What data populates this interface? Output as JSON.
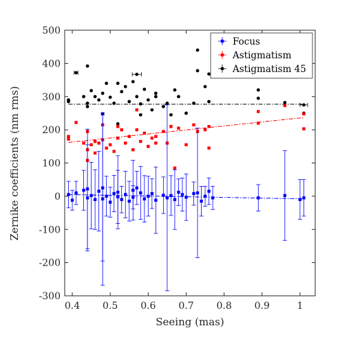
{
  "chart_data": {
    "type": "scatter",
    "xlabel": "Seeing (mas)",
    "ylabel": "Zernike coefficients (nm rms)",
    "xlim": [
      0.38,
      1.04
    ],
    "ylim": [
      -300,
      500
    ],
    "xticks": [
      "0.4",
      "0.5",
      "0.6",
      "0.7",
      "0.8",
      "0.9",
      "1"
    ],
    "yticks": [
      "-300",
      "-200",
      "-100",
      "0",
      "100",
      "200",
      "300",
      "400",
      "500"
    ],
    "legend_position": "top-right",
    "grid": false,
    "series": [
      {
        "name": "Focus",
        "color": "#0000ff",
        "marker": "square",
        "fit": {
          "x": [
            0.39,
            1.01
          ],
          "y": [
            5,
            -8
          ]
        },
        "points": [
          {
            "x": 0.39,
            "y": 5,
            "err": 40
          },
          {
            "x": 0.4,
            "y": -12,
            "err": 30
          },
          {
            "x": 0.41,
            "y": 10,
            "err": 35
          },
          {
            "x": 0.43,
            "y": 18,
            "err": 60
          },
          {
            "x": 0.44,
            "y": 22,
            "err": 180
          },
          {
            "x": 0.44,
            "y": -5,
            "err": 160
          },
          {
            "x": 0.45,
            "y": 2,
            "err": 100
          },
          {
            "x": 0.46,
            "y": -10,
            "err": 90
          },
          {
            "x": 0.47,
            "y": 15,
            "err": 120
          },
          {
            "x": 0.48,
            "y": -8,
            "err": 260
          },
          {
            "x": 0.48,
            "y": 25,
            "err": 220
          },
          {
            "x": 0.49,
            "y": 0,
            "err": 60
          },
          {
            "x": 0.5,
            "y": -18,
            "err": 45
          },
          {
            "x": 0.51,
            "y": 8,
            "err": 55
          },
          {
            "x": 0.52,
            "y": -2,
            "err": 80
          },
          {
            "x": 0.52,
            "y": 12,
            "err": 110
          },
          {
            "x": 0.53,
            "y": -10,
            "err": 40
          },
          {
            "x": 0.54,
            "y": 5,
            "err": 70
          },
          {
            "x": 0.55,
            "y": -15,
            "err": 60
          },
          {
            "x": 0.56,
            "y": 18,
            "err": 90
          },
          {
            "x": 0.56,
            "y": -3,
            "err": 35
          },
          {
            "x": 0.57,
            "y": 25,
            "err": 50
          },
          {
            "x": 0.58,
            "y": 10,
            "err": 80
          },
          {
            "x": 0.59,
            "y": -8,
            "err": 70
          },
          {
            "x": 0.6,
            "y": 0,
            "err": 60
          },
          {
            "x": 0.61,
            "y": 8,
            "err": 45
          },
          {
            "x": 0.62,
            "y": -12,
            "err": 100
          },
          {
            "x": 0.64,
            "y": 3,
            "err": 55
          },
          {
            "x": 0.65,
            "y": -5,
            "err": 280
          },
          {
            "x": 0.66,
            "y": 2,
            "err": 60
          },
          {
            "x": 0.67,
            "y": -10,
            "err": 90
          },
          {
            "x": 0.68,
            "y": 12,
            "err": 40
          },
          {
            "x": 0.69,
            "y": 5,
            "err": 50
          },
          {
            "x": 0.7,
            "y": -3,
            "err": 70
          },
          {
            "x": 0.72,
            "y": 8,
            "err": 35
          },
          {
            "x": 0.73,
            "y": 10,
            "err": 195
          },
          {
            "x": 0.74,
            "y": -15,
            "err": 45
          },
          {
            "x": 0.75,
            "y": 0,
            "err": 30
          },
          {
            "x": 0.76,
            "y": 15,
            "err": 40
          },
          {
            "x": 0.77,
            "y": -5,
            "err": 35
          },
          {
            "x": 0.89,
            "y": -5,
            "err": 40
          },
          {
            "x": 0.96,
            "y": 2,
            "err": 135
          },
          {
            "x": 1.0,
            "y": -10,
            "err": 60
          },
          {
            "x": 1.01,
            "y": -5,
            "err": 55
          }
        ]
      },
      {
        "name": "Astigmatism",
        "color": "#ff0000",
        "marker": "square",
        "fit": {
          "x": [
            0.39,
            1.01
          ],
          "y": [
            162,
            237
          ]
        },
        "points": [
          {
            "x": 0.39,
            "y": 172
          },
          {
            "x": 0.39,
            "y": 180
          },
          {
            "x": 0.41,
            "y": 222
          },
          {
            "x": 0.43,
            "y": 160
          },
          {
            "x": 0.44,
            "y": 108
          },
          {
            "x": 0.44,
            "y": 140
          },
          {
            "x": 0.44,
            "y": 195
          },
          {
            "x": 0.45,
            "y": 155
          },
          {
            "x": 0.46,
            "y": 165
          },
          {
            "x": 0.46,
            "y": 130
          },
          {
            "x": 0.47,
            "y": 160
          },
          {
            "x": 0.48,
            "y": 215
          },
          {
            "x": 0.48,
            "y": 170
          },
          {
            "x": 0.49,
            "y": 145
          },
          {
            "x": 0.5,
            "y": 155
          },
          {
            "x": 0.51,
            "y": 135
          },
          {
            "x": 0.52,
            "y": 175
          },
          {
            "x": 0.52,
            "y": 210
          },
          {
            "x": 0.53,
            "y": 200
          },
          {
            "x": 0.54,
            "y": 160
          },
          {
            "x": 0.55,
            "y": 180
          },
          {
            "x": 0.56,
            "y": 140
          },
          {
            "x": 0.57,
            "y": 200
          },
          {
            "x": 0.57,
            "y": 260
          },
          {
            "x": 0.58,
            "y": 165
          },
          {
            "x": 0.59,
            "y": 190
          },
          {
            "x": 0.6,
            "y": 150
          },
          {
            "x": 0.61,
            "y": 175
          },
          {
            "x": 0.62,
            "y": 180
          },
          {
            "x": 0.62,
            "y": 160
          },
          {
            "x": 0.64,
            "y": 195
          },
          {
            "x": 0.65,
            "y": 160
          },
          {
            "x": 0.66,
            "y": 210
          },
          {
            "x": 0.67,
            "y": 85
          },
          {
            "x": 0.68,
            "y": 205
          },
          {
            "x": 0.7,
            "y": 155
          },
          {
            "x": 0.72,
            "y": 215
          },
          {
            "x": 0.73,
            "y": 195
          },
          {
            "x": 0.75,
            "y": 200
          },
          {
            "x": 0.76,
            "y": 210
          },
          {
            "x": 0.76,
            "y": 145
          },
          {
            "x": 0.89,
            "y": 255
          },
          {
            "x": 0.89,
            "y": 220
          },
          {
            "x": 0.96,
            "y": 273
          },
          {
            "x": 1.01,
            "y": 248
          },
          {
            "x": 1.01,
            "y": 203
          }
        ]
      },
      {
        "name": "Astigmatism 45",
        "color": "#000000",
        "marker": "circle",
        "fit": {
          "x": [
            0.39,
            1.01
          ],
          "y": [
            277,
            277
          ]
        },
        "points": [
          {
            "x": 0.39,
            "y": 285
          },
          {
            "x": 0.39,
            "y": 290
          },
          {
            "x": 0.41,
            "y": 372,
            "xerr": 0.005
          },
          {
            "x": 0.43,
            "y": 300
          },
          {
            "x": 0.44,
            "y": 392
          },
          {
            "x": 0.44,
            "y": 280
          },
          {
            "x": 0.44,
            "y": 270
          },
          {
            "x": 0.45,
            "y": 318
          },
          {
            "x": 0.46,
            "y": 300
          },
          {
            "x": 0.47,
            "y": 290
          },
          {
            "x": 0.48,
            "y": 248
          },
          {
            "x": 0.48,
            "y": 310
          },
          {
            "x": 0.49,
            "y": 340
          },
          {
            "x": 0.5,
            "y": 298
          },
          {
            "x": 0.51,
            "y": 280
          },
          {
            "x": 0.52,
            "y": 218
          },
          {
            "x": 0.52,
            "y": 340
          },
          {
            "x": 0.53,
            "y": 315
          },
          {
            "x": 0.54,
            "y": 330
          },
          {
            "x": 0.55,
            "y": 285
          },
          {
            "x": 0.56,
            "y": 345
          },
          {
            "x": 0.57,
            "y": 367,
            "xerr": 0.012
          },
          {
            "x": 0.57,
            "y": 300
          },
          {
            "x": 0.58,
            "y": 278
          },
          {
            "x": 0.58,
            "y": 245
          },
          {
            "x": 0.59,
            "y": 322
          },
          {
            "x": 0.6,
            "y": 290
          },
          {
            "x": 0.61,
            "y": 260
          },
          {
            "x": 0.62,
            "y": 300
          },
          {
            "x": 0.62,
            "y": 310
          },
          {
            "x": 0.64,
            "y": 270
          },
          {
            "x": 0.65,
            "y": 280
          },
          {
            "x": 0.66,
            "y": 245
          },
          {
            "x": 0.67,
            "y": 320
          },
          {
            "x": 0.68,
            "y": 300
          },
          {
            "x": 0.7,
            "y": 250
          },
          {
            "x": 0.72,
            "y": 280
          },
          {
            "x": 0.73,
            "y": 440
          },
          {
            "x": 0.73,
            "y": 378
          },
          {
            "x": 0.75,
            "y": 330
          },
          {
            "x": 0.76,
            "y": 368
          },
          {
            "x": 0.76,
            "y": 285
          },
          {
            "x": 0.89,
            "y": 320
          },
          {
            "x": 0.89,
            "y": 295
          },
          {
            "x": 0.96,
            "y": 282
          },
          {
            "x": 1.01,
            "y": 275,
            "xerr": 0.01
          },
          {
            "x": 1.01,
            "y": 250
          }
        ]
      }
    ]
  }
}
